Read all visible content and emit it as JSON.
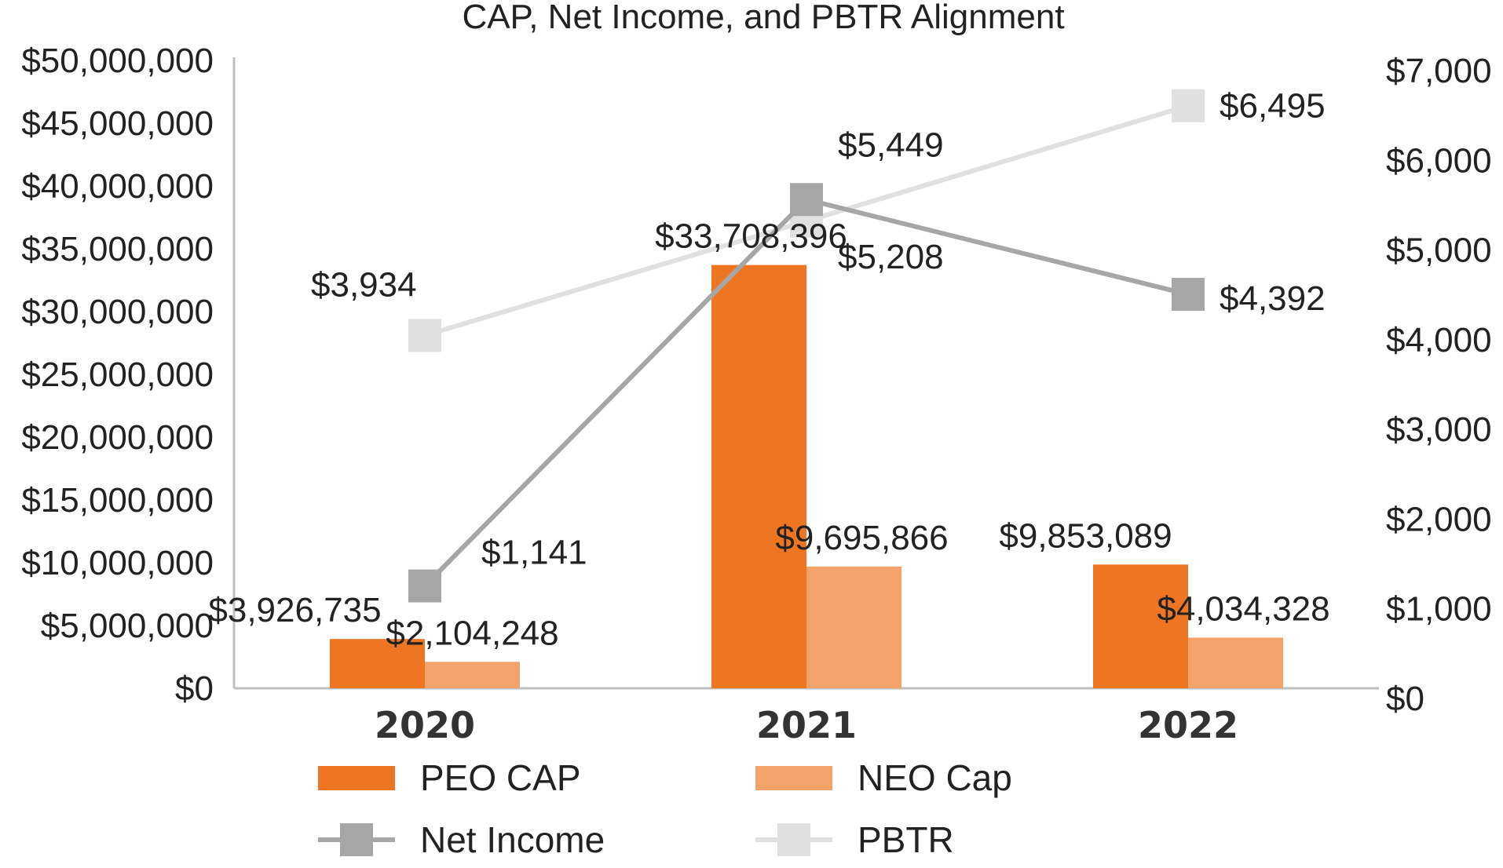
{
  "chart_data": {
    "type": "bar",
    "title": "CAP, Net Income, and PBTR Alignment",
    "categories": [
      "2020",
      "2021",
      "2022"
    ],
    "left_axis": {
      "ylim": [
        0,
        50000000
      ],
      "tick_labels": [
        "$0",
        "$5,000,000",
        "$10,000,000",
        "$15,000,000",
        "$20,000,000",
        "$25,000,000",
        "$30,000,000",
        "$35,000,000",
        "$40,000,000",
        "$45,000,000",
        "$50,000,000"
      ]
    },
    "right_axis": {
      "ylim": [
        0,
        7000
      ],
      "tick_labels": [
        "$0",
        "$1,000",
        "$2,000",
        "$3,000",
        "$4,000",
        "$5,000",
        "$6,000",
        "$7,000"
      ]
    },
    "series": [
      {
        "name": "PEO CAP",
        "kind": "bar",
        "axis": "left",
        "color": "#EE7623",
        "values": [
          3926735,
          33708396,
          9853089
        ],
        "labels": [
          "$3,926,735",
          "$33,708,396",
          "$9,853,089"
        ]
      },
      {
        "name": "NEO Cap",
        "kind": "bar",
        "axis": "left",
        "color": "#F3A36A",
        "values": [
          2104248,
          9695866,
          4034328
        ],
        "labels": [
          "$2,104,248",
          "$9,695,866",
          "$4,034,328"
        ]
      },
      {
        "name": "Net Income",
        "kind": "line",
        "axis": "right",
        "color": "#A6A6A6",
        "values": [
          1141,
          5449,
          4392
        ],
        "labels": [
          "$1,141",
          "$5,449",
          "$4,392"
        ]
      },
      {
        "name": "PBTR",
        "kind": "line",
        "axis": "right",
        "color": "#E0E0E0",
        "values": [
          3934,
          5208,
          6495
        ],
        "labels": [
          "$3,934",
          "$5,208",
          "$6,495"
        ]
      }
    ],
    "legend": [
      "PEO CAP",
      "NEO Cap",
      "Net Income",
      "PBTR"
    ]
  }
}
